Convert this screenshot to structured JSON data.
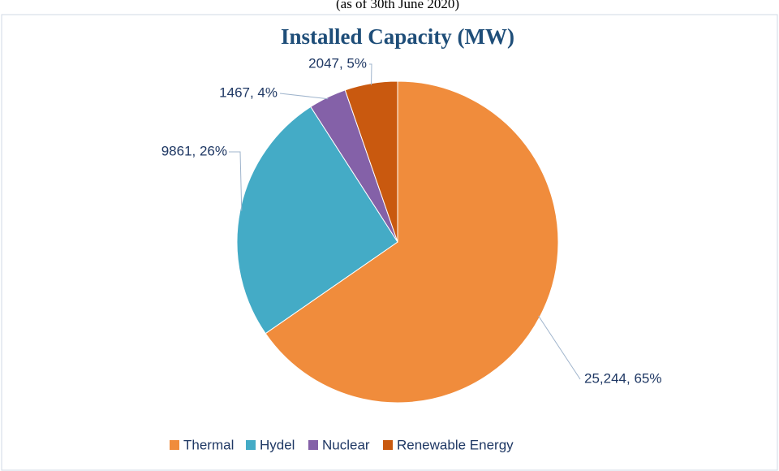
{
  "chart_data": {
    "type": "pie",
    "title": "Installed Capacity (MW)",
    "subtitle": "(as of 30th June 2020)",
    "categories": [
      "Thermal",
      "Hydel",
      "Nuclear",
      "Renewable Energy"
    ],
    "values": [
      25244,
      9861,
      1467,
      2047
    ],
    "value_labels": [
      "25,244, 65%",
      "9861, 26%",
      "1467, 4%",
      "2047, 5%"
    ],
    "colors": [
      "#f08c3c",
      "#44abc6",
      "#8461a8",
      "#c9590f"
    ],
    "legend": "bottom"
  }
}
